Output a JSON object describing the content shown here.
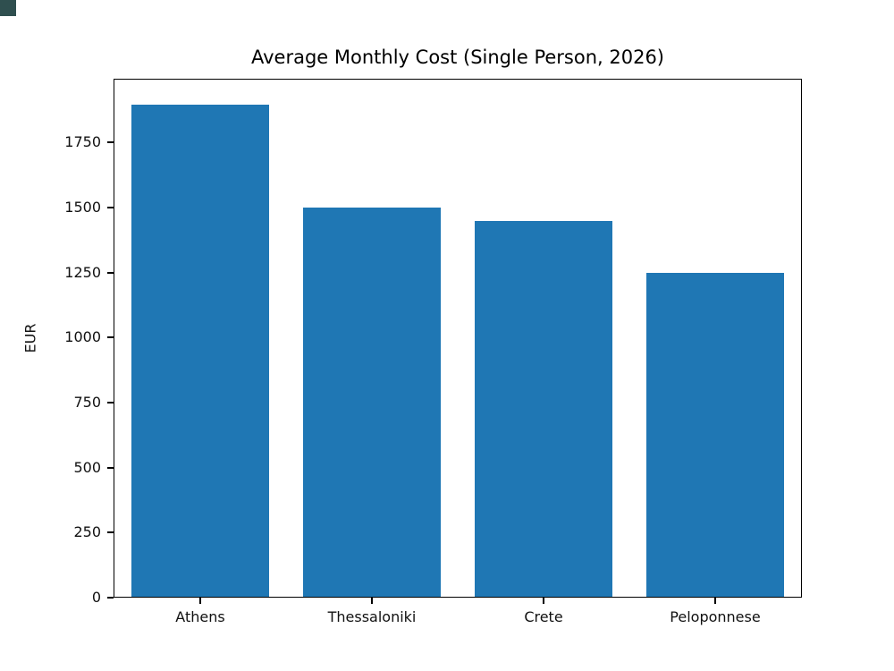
{
  "chart_data": {
    "type": "bar",
    "title": "Average Monthly Cost (Single Person, 2026)",
    "xlabel": "",
    "ylabel": "EUR",
    "categories": [
      "Athens",
      "Thessaloniki",
      "Crete",
      "Peloponnese"
    ],
    "values": [
      1900,
      1500,
      1450,
      1250
    ],
    "yticks": [
      0,
      250,
      500,
      750,
      1000,
      1250,
      1500,
      1750
    ],
    "ylim": [
      0,
      1995
    ],
    "bar_color": "#1f77b4",
    "grid": false,
    "legend": null,
    "background_color": "#ffffff"
  },
  "decor": {
    "corner_color": "#2f4f4f"
  }
}
